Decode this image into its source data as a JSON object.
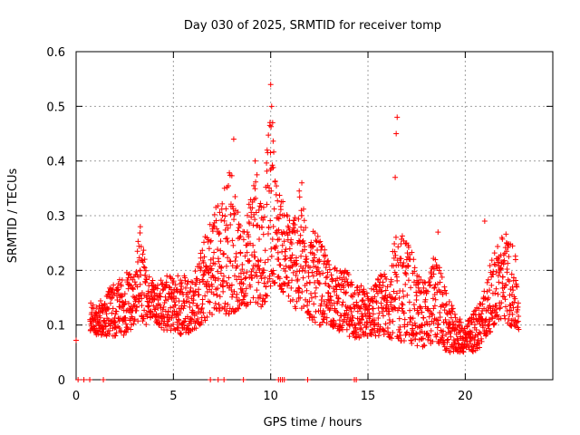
{
  "chart_data": {
    "type": "scatter",
    "title": "Day 030 of 2025, SRMTID for receiver tomp",
    "xlabel": "GPS time / hours",
    "ylabel": "SRMTID / TECUs",
    "xlim": [
      0,
      24.5
    ],
    "ylim": [
      0,
      0.6
    ],
    "xticks": [
      0,
      5,
      10,
      15,
      20
    ],
    "xtick_labels": [
      "0",
      "5",
      "10",
      "15",
      "20"
    ],
    "yticks": [
      0,
      0.1,
      0.2,
      0.3,
      0.4,
      0.5,
      0.6
    ],
    "ytick_labels": [
      "0",
      "0.1",
      "0.2",
      "0.3",
      "0.4",
      "0.5",
      "0.6"
    ],
    "grid": true,
    "marker": "+",
    "series": [
      {
        "name": "SRMTID",
        "color": "#ff0000",
        "envelope": {
          "x": [
            0.0,
            0.7,
            1.0,
            1.5,
            2.0,
            2.5,
            3.0,
            3.3,
            3.6,
            4.0,
            4.5,
            5.0,
            5.5,
            6.0,
            6.5,
            7.0,
            7.5,
            8.0,
            8.5,
            9.0,
            9.3,
            9.6,
            10.0,
            10.3,
            10.6,
            11.0,
            11.5,
            12.0,
            12.5,
            13.0,
            13.5,
            14.0,
            14.5,
            15.0,
            15.5,
            16.0,
            16.5,
            17.0,
            17.5,
            18.0,
            18.5,
            19.0,
            19.5,
            20.0,
            20.5,
            21.0,
            21.5,
            22.0,
            22.5,
            22.8
          ],
          "low": [
            0.07,
            0.09,
            0.08,
            0.08,
            0.08,
            0.08,
            0.1,
            0.11,
            0.1,
            0.11,
            0.09,
            0.09,
            0.08,
            0.09,
            0.1,
            0.12,
            0.12,
            0.12,
            0.13,
            0.14,
            0.14,
            0.13,
            0.17,
            0.18,
            0.16,
            0.14,
            0.12,
            0.11,
            0.1,
            0.1,
            0.09,
            0.08,
            0.07,
            0.08,
            0.08,
            0.08,
            0.07,
            0.07,
            0.06,
            0.06,
            0.07,
            0.05,
            0.05,
            0.05,
            0.05,
            0.07,
            0.1,
            0.11,
            0.09,
            0.08
          ],
          "high": [
            0.07,
            0.15,
            0.13,
            0.16,
            0.18,
            0.19,
            0.22,
            0.28,
            0.2,
            0.18,
            0.19,
            0.19,
            0.2,
            0.19,
            0.25,
            0.31,
            0.35,
            0.4,
            0.26,
            0.37,
            0.4,
            0.33,
            0.5,
            0.37,
            0.33,
            0.3,
            0.35,
            0.28,
            0.26,
            0.22,
            0.2,
            0.2,
            0.18,
            0.16,
            0.19,
            0.2,
            0.27,
            0.27,
            0.2,
            0.18,
            0.24,
            0.16,
            0.12,
            0.1,
            0.13,
            0.17,
            0.24,
            0.28,
            0.24,
            0.19
          ]
        },
        "spikes": [
          {
            "x": 8.1,
            "y": 0.44
          },
          {
            "x": 9.2,
            "y": 0.4
          },
          {
            "x": 10.0,
            "y": 0.54
          },
          {
            "x": 10.05,
            "y": 0.5
          },
          {
            "x": 10.1,
            "y": 0.47
          },
          {
            "x": 16.5,
            "y": 0.48
          },
          {
            "x": 16.45,
            "y": 0.45
          },
          {
            "x": 16.4,
            "y": 0.37
          },
          {
            "x": 21.0,
            "y": 0.29
          },
          {
            "x": 11.6,
            "y": 0.36
          },
          {
            "x": 3.3,
            "y": 0.28
          },
          {
            "x": 18.6,
            "y": 0.27
          }
        ],
        "zero_points_x": [
          0.1,
          0.4,
          0.7,
          1.4,
          6.9,
          7.3,
          7.6,
          8.6,
          10.4,
          10.5,
          10.6,
          10.7,
          11.9,
          14.3,
          14.4
        ]
      }
    ]
  }
}
